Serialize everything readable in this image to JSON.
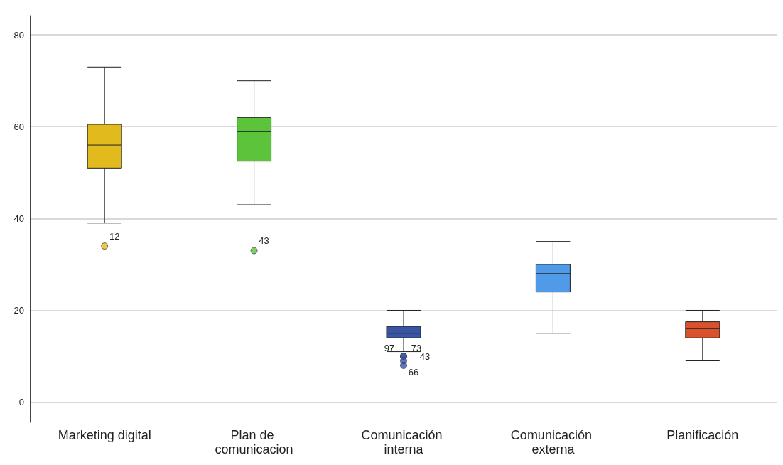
{
  "chart_data": {
    "type": "box",
    "categories": [
      "Marketing digital",
      "Plan de comunicacion",
      "Comunicación interna",
      "Comunicación externa",
      "Planificación"
    ],
    "colors": [
      "#e1bb1e",
      "#5cc43a",
      "#3a54a4",
      "#519ae8",
      "#d9522d"
    ],
    "boxes": [
      {
        "low": 39,
        "q1": 51,
        "median": 56,
        "q3": 60.5,
        "high": 73,
        "outliers": [
          34
        ]
      },
      {
        "low": 43,
        "q1": 52.5,
        "median": 59,
        "q3": 62,
        "high": 70,
        "outliers": [
          33
        ]
      },
      {
        "low": 11,
        "q1": 14,
        "median": 15,
        "q3": 16.5,
        "high": 20,
        "outliers": [
          10,
          10,
          9,
          8
        ]
      },
      {
        "low": 15,
        "q1": 24,
        "median": 28,
        "q3": 30,
        "high": 35
      },
      {
        "low": 9,
        "q1": 14,
        "median": 16,
        "q3": 17.5,
        "high": 20
      }
    ],
    "annotations": [
      "12",
      "43",
      "97",
      "73",
      "43",
      "66"
    ],
    "ylim": [
      -4.4,
      84.2
    ],
    "yticks": [
      0,
      20,
      40,
      60,
      80
    ],
    "grid": "y"
  }
}
